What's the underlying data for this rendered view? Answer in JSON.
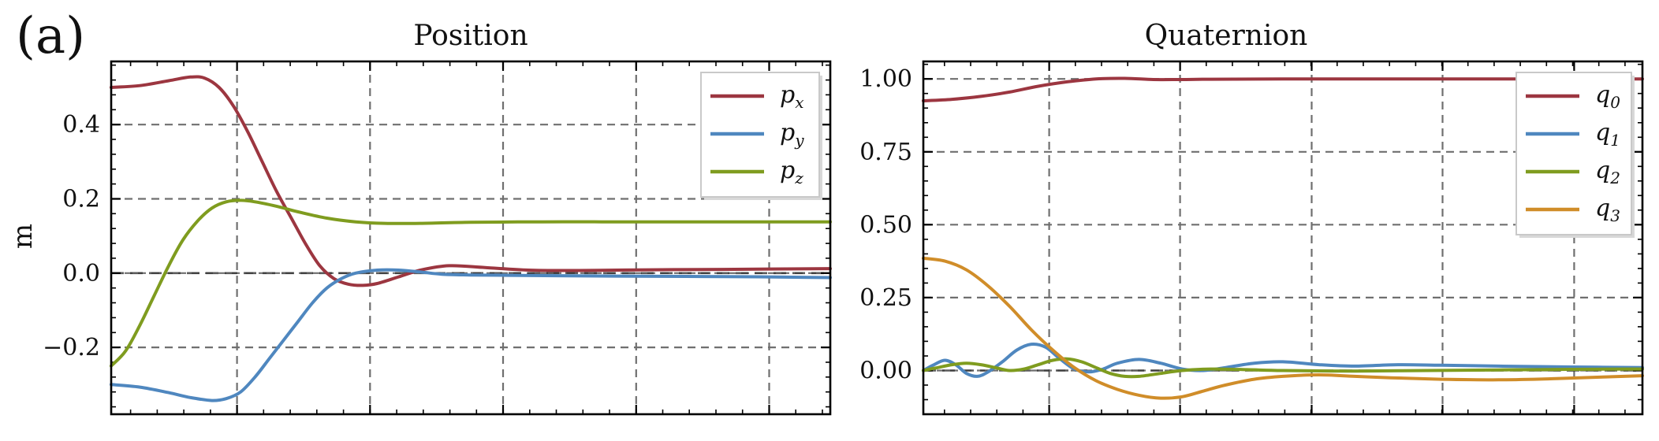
{
  "panel_letter": "(a)",
  "chart_data": [
    {
      "type": "line",
      "title": "Position",
      "xlabel": "",
      "ylabel": "m",
      "xlim": [
        0,
        1
      ],
      "ylim": [
        -0.38,
        0.57
      ],
      "yticks": [
        -0.2,
        0.0,
        0.2,
        0.4
      ],
      "ytick_labels": [
        "−0.2",
        "0.0",
        "0.2",
        "0.4"
      ],
      "x_gridlines": [
        0.175,
        0.36,
        0.545,
        0.73,
        0.915
      ],
      "grid": true,
      "zero_reference_line": true,
      "legend": "top-right",
      "series": [
        {
          "name": "p",
          "subscript": "x",
          "color": "#9c3640",
          "x": [
            0,
            0.04,
            0.08,
            0.11,
            0.13,
            0.15,
            0.17,
            0.19,
            0.21,
            0.23,
            0.25,
            0.27,
            0.29,
            0.31,
            0.33,
            0.35,
            0.37,
            0.4,
            0.43,
            0.47,
            0.52,
            0.58,
            0.65,
            0.75,
            0.85,
            1.0
          ],
          "values": [
            0.5,
            0.505,
            0.518,
            0.528,
            0.525,
            0.5,
            0.45,
            0.38,
            0.3,
            0.22,
            0.15,
            0.08,
            0.02,
            -0.015,
            -0.03,
            -0.033,
            -0.028,
            -0.01,
            0.008,
            0.02,
            0.015,
            0.008,
            0.007,
            0.009,
            0.01,
            0.012
          ]
        },
        {
          "name": "p",
          "subscript": "y",
          "color": "#4f87bf",
          "x": [
            0,
            0.04,
            0.08,
            0.11,
            0.14,
            0.16,
            0.18,
            0.2,
            0.22,
            0.24,
            0.26,
            0.28,
            0.3,
            0.32,
            0.34,
            0.37,
            0.4,
            0.43,
            0.46,
            0.5,
            0.55,
            0.62,
            0.7,
            0.8,
            0.9,
            1.0
          ],
          "values": [
            -0.3,
            -0.307,
            -0.322,
            -0.335,
            -0.343,
            -0.338,
            -0.32,
            -0.28,
            -0.23,
            -0.18,
            -0.13,
            -0.08,
            -0.04,
            -0.015,
            0.0,
            0.008,
            0.008,
            0.003,
            -0.003,
            -0.005,
            -0.006,
            -0.007,
            -0.008,
            -0.009,
            -0.01,
            -0.012
          ]
        },
        {
          "name": "p",
          "subscript": "z",
          "color": "#7f9c1f",
          "x": [
            0,
            0.02,
            0.04,
            0.06,
            0.08,
            0.1,
            0.12,
            0.14,
            0.16,
            0.18,
            0.2,
            0.23,
            0.26,
            0.3,
            0.34,
            0.38,
            0.43,
            0.5,
            0.6,
            0.7,
            0.8,
            0.9,
            1.0
          ],
          "values": [
            -0.25,
            -0.21,
            -0.14,
            -0.06,
            0.02,
            0.09,
            0.14,
            0.175,
            0.192,
            0.196,
            0.192,
            0.18,
            0.165,
            0.148,
            0.138,
            0.134,
            0.134,
            0.137,
            0.138,
            0.138,
            0.138,
            0.138,
            0.138
          ]
        }
      ]
    },
    {
      "type": "line",
      "title": "Quaternion",
      "xlabel": "",
      "ylabel": "",
      "xlim": [
        0,
        1
      ],
      "ylim": [
        -0.15,
        1.06
      ],
      "yticks": [
        0.0,
        0.25,
        0.5,
        0.75,
        1.0
      ],
      "ytick_labels": [
        "0.00",
        "0.25",
        "0.50",
        "0.75",
        "1.00"
      ],
      "x_gridlines": [
        0.175,
        0.357,
        0.54,
        0.722,
        0.905
      ],
      "grid": true,
      "zero_reference_line": true,
      "legend": "top-right",
      "series": [
        {
          "name": "q",
          "subscript": "0",
          "color": "#9c3640",
          "x": [
            0,
            0.04,
            0.08,
            0.12,
            0.16,
            0.2,
            0.24,
            0.28,
            0.32,
            0.36,
            0.4,
            0.5,
            0.6,
            0.7,
            0.8,
            0.9,
            1.0
          ],
          "values": [
            0.925,
            0.93,
            0.94,
            0.955,
            0.975,
            0.99,
            1.0,
            1.002,
            0.998,
            0.998,
            0.999,
            1.0,
            1.0,
            1.0,
            1.0,
            1.0,
            1.0
          ]
        },
        {
          "name": "q",
          "subscript": "1",
          "color": "#4f87bf",
          "x": [
            0,
            0.015,
            0.03,
            0.045,
            0.06,
            0.075,
            0.09,
            0.11,
            0.13,
            0.15,
            0.17,
            0.19,
            0.21,
            0.23,
            0.25,
            0.27,
            0.3,
            0.33,
            0.36,
            0.39,
            0.42,
            0.46,
            0.5,
            0.55,
            0.6,
            0.66,
            0.72,
            0.8,
            0.9,
            1.0
          ],
          "values": [
            0.0,
            0.02,
            0.035,
            0.02,
            -0.01,
            -0.02,
            -0.005,
            0.03,
            0.07,
            0.09,
            0.08,
            0.04,
            0.005,
            -0.005,
            0.005,
            0.025,
            0.038,
            0.025,
            0.005,
            0.0,
            0.01,
            0.025,
            0.03,
            0.02,
            0.015,
            0.02,
            0.018,
            0.015,
            0.012,
            0.01
          ]
        },
        {
          "name": "q",
          "subscript": "2",
          "color": "#7f9c1f",
          "x": [
            0,
            0.02,
            0.04,
            0.06,
            0.08,
            0.1,
            0.12,
            0.14,
            0.16,
            0.18,
            0.2,
            0.22,
            0.24,
            0.26,
            0.28,
            0.3,
            0.33,
            0.36,
            0.4,
            0.45,
            0.5,
            0.6,
            0.7,
            0.8,
            0.9,
            1.0
          ],
          "values": [
            0.0,
            0.01,
            0.02,
            0.025,
            0.02,
            0.01,
            0.0,
            0.005,
            0.02,
            0.035,
            0.04,
            0.03,
            0.01,
            -0.01,
            -0.02,
            -0.02,
            -0.01,
            0.0,
            0.005,
            0.003,
            0.0,
            -0.002,
            0.0,
            0.002,
            0.004,
            0.005
          ]
        },
        {
          "name": "q",
          "subscript": "3",
          "color": "#d08d29",
          "x": [
            0,
            0.03,
            0.06,
            0.09,
            0.12,
            0.15,
            0.18,
            0.21,
            0.24,
            0.27,
            0.3,
            0.33,
            0.36,
            0.39,
            0.42,
            0.46,
            0.5,
            0.55,
            0.6,
            0.65,
            0.72,
            0.8,
            0.88,
            0.95,
            1.0
          ],
          "values": [
            0.385,
            0.375,
            0.345,
            0.29,
            0.22,
            0.14,
            0.07,
            0.01,
            -0.035,
            -0.065,
            -0.085,
            -0.095,
            -0.09,
            -0.07,
            -0.05,
            -0.03,
            -0.02,
            -0.015,
            -0.02,
            -0.025,
            -0.03,
            -0.032,
            -0.028,
            -0.022,
            -0.018
          ]
        }
      ]
    }
  ]
}
